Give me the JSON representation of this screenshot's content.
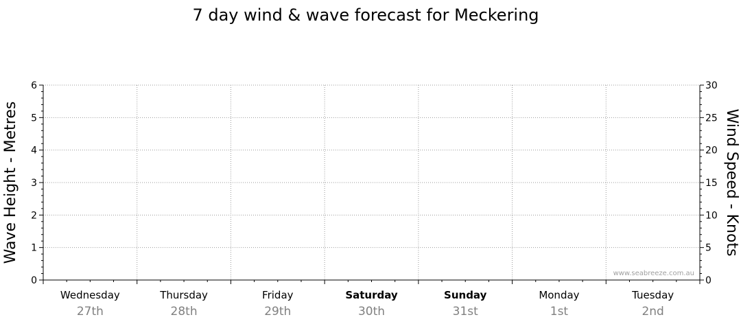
{
  "chart_data": {
    "type": "line",
    "title": "7 day wind & wave forecast for Meckering",
    "ylabel_left": "Wave Height - Metres",
    "ylabel_right": "Wind Speed - Knots",
    "ylim_left": [
      0,
      6
    ],
    "ylim_right": [
      0,
      30
    ],
    "yticks_left": [
      "0",
      "1",
      "2",
      "3",
      "4",
      "5",
      "6"
    ],
    "yticks_right": [
      "0",
      "5",
      "10",
      "15",
      "20",
      "25",
      "30"
    ],
    "days": [
      {
        "name": "Wednesday",
        "date": "27th",
        "bold": false
      },
      {
        "name": "Thursday",
        "date": "28th",
        "bold": false
      },
      {
        "name": "Friday",
        "date": "29th",
        "bold": false
      },
      {
        "name": "Saturday",
        "date": "30th",
        "bold": true
      },
      {
        "name": "Sunday",
        "date": "31st",
        "bold": true
      },
      {
        "name": "Monday",
        "date": "1st",
        "bold": false
      },
      {
        "name": "Tuesday",
        "date": "2nd",
        "bold": false
      }
    ],
    "series": [],
    "grid": true,
    "watermark": "www.seabreeze.com.au"
  }
}
